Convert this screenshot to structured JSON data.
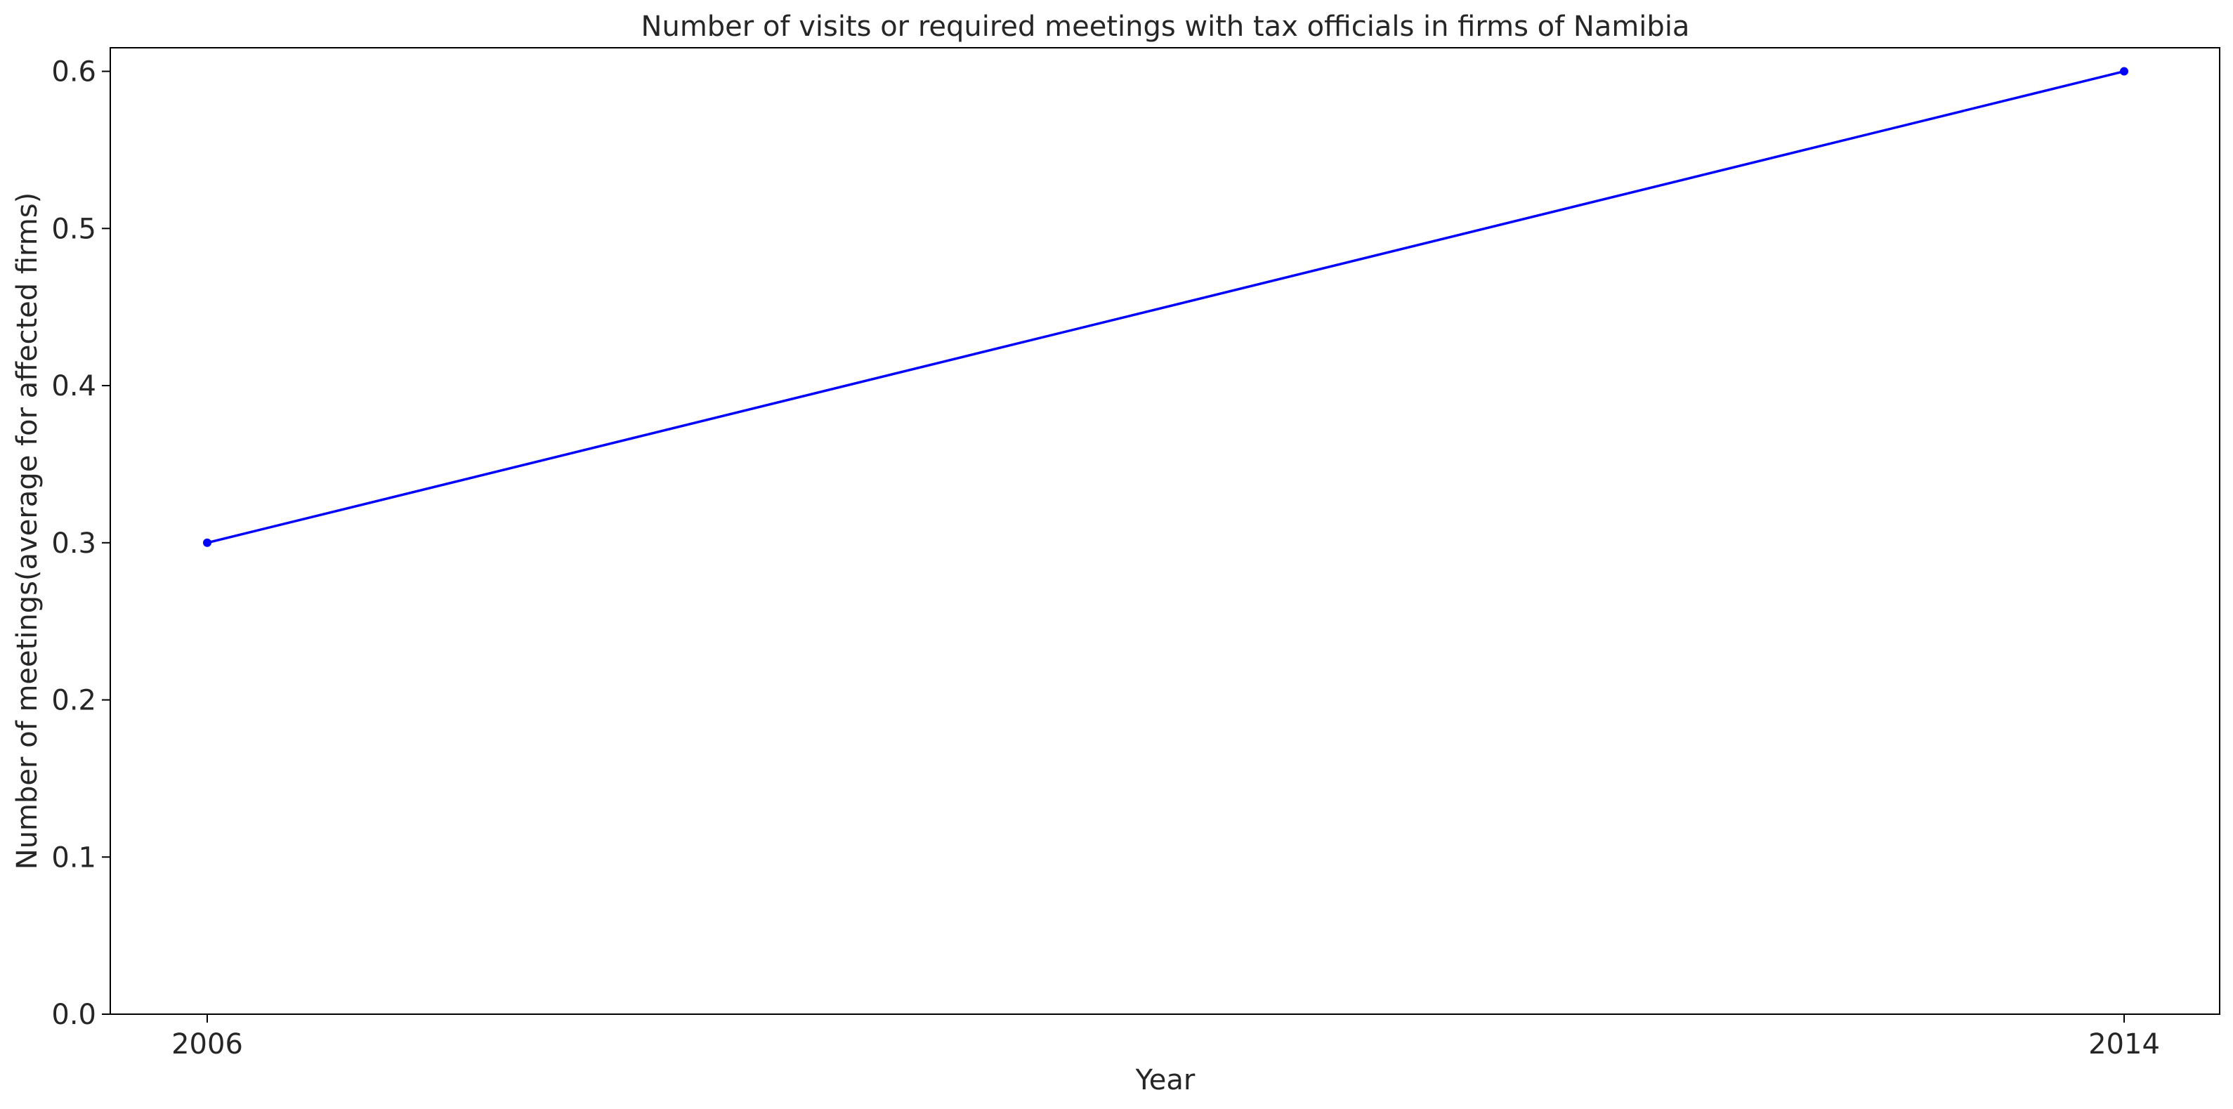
{
  "chart_data": {
    "type": "line",
    "title": "Number of visits or required meetings with tax officials in firms of Namibia",
    "xlabel": "Year",
    "ylabel": "Number of meetings(average for affected firms)",
    "x": [
      "2006",
      "2014"
    ],
    "series": [
      {
        "values": [
          0.3,
          0.6
        ],
        "color": "#0000ff",
        "marker": "circle"
      }
    ],
    "ylim": [
      0.0,
      0.615
    ],
    "yticks": [
      0.0,
      0.1,
      0.2,
      0.3,
      0.4,
      0.5,
      0.6
    ],
    "ytick_labels": [
      "0.0",
      "0.1",
      "0.2",
      "0.3",
      "0.4",
      "0.5",
      "0.6"
    ],
    "xticks": [
      "2006",
      "2014"
    ],
    "grid": false,
    "legend": "none"
  }
}
